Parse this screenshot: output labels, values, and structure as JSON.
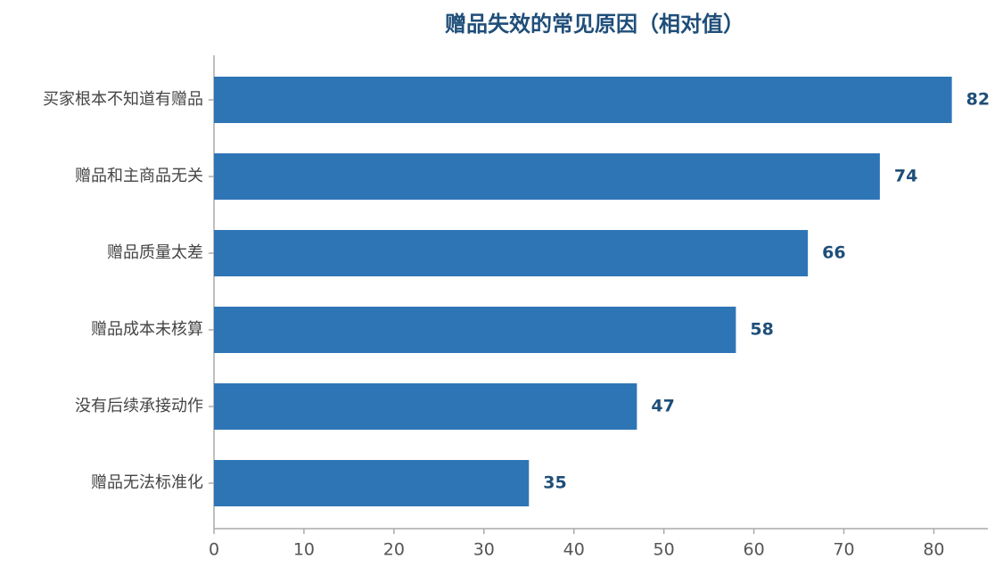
{
  "chart_data": {
    "type": "barh",
    "title": "赠品失效的常见原因（相对值）",
    "categories": [
      "买家根本不知道有赠品",
      "赠品和主商品无关",
      "赠品质量太差",
      "赠品成本未核算",
      "没有后续承接动作",
      "赠品无法标准化"
    ],
    "values": [
      82,
      74,
      66,
      58,
      47,
      35
    ],
    "color": "#2e75b6",
    "xlim": [
      0,
      86
    ],
    "xticks": [
      0,
      10,
      20,
      30,
      40,
      50,
      60,
      70,
      80
    ],
    "grid": false
  }
}
